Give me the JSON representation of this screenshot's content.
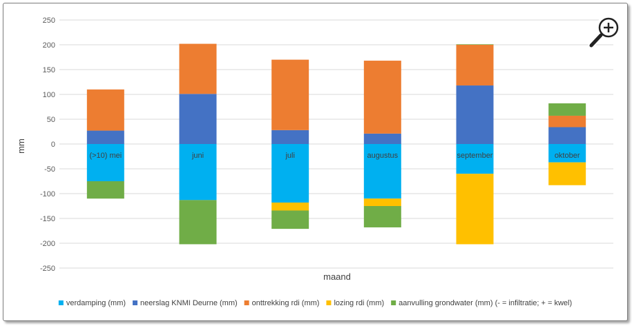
{
  "chart_data": {
    "type": "bar",
    "stacked": true,
    "categories": [
      "(>10) mei",
      "juni",
      "juli",
      "augustus",
      "september",
      "oktober"
    ],
    "xlabel": "maand",
    "ylabel": "mm",
    "ylim": [
      -250,
      250
    ],
    "yticks": [
      -250,
      -200,
      -150,
      -100,
      -50,
      0,
      50,
      100,
      150,
      200,
      250
    ],
    "grid": true,
    "legend_position": "bottom",
    "series": [
      {
        "name": "verdamping (mm)",
        "color": "#00b0f0",
        "values": [
          -75,
          -113,
          -118,
          -110,
          -60,
          -37
        ]
      },
      {
        "name": "neerslag KNMI Deurne (mm)",
        "color": "#4472c4",
        "values": [
          27,
          101,
          28,
          21,
          118,
          34
        ]
      },
      {
        "name": "onttrekking rdi (mm)",
        "color": "#ed7d31",
        "values": [
          83,
          101,
          142,
          147,
          82,
          23
        ]
      },
      {
        "name": "lozing rdi (mm)",
        "color": "#ffc000",
        "values": [
          0,
          0,
          -16,
          -15,
          -142,
          -46
        ]
      },
      {
        "name": "aanvulling grondwater (mm) (- = infiltratie; + = kwel)",
        "color": "#70ad47",
        "values": [
          -35,
          -89,
          -37,
          -43,
          1,
          25
        ]
      }
    ]
  },
  "icons": {
    "zoom": "zoom-in-icon"
  }
}
